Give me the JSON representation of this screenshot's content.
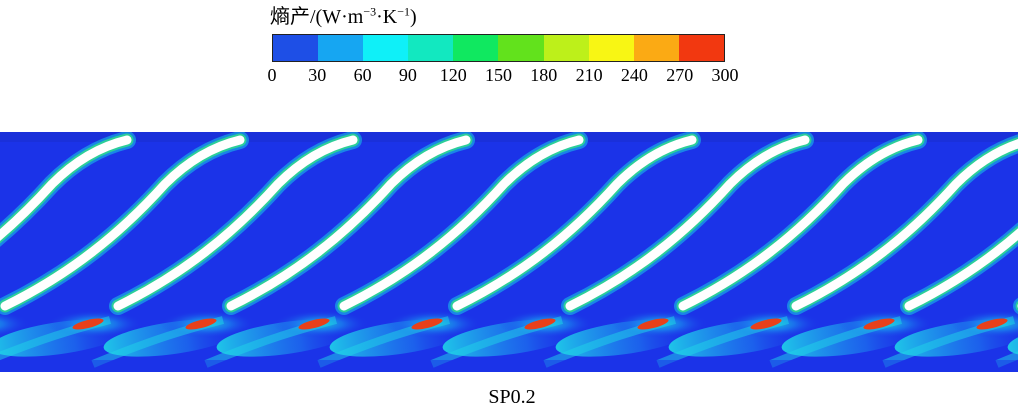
{
  "legend": {
    "title_main": "熵产/(W·m",
    "title_sup1": "−3",
    "title_mid": "·K",
    "title_sup2": "−1",
    "title_end": ")",
    "ticks": [
      "0",
      "30",
      "60",
      "90",
      "120",
      "150",
      "180",
      "210",
      "240",
      "270",
      "300"
    ],
    "colors": [
      "#1e4fe6",
      "#16a6f2",
      "#0ff0f8",
      "#12e8c0",
      "#10e860",
      "#62e21c",
      "#bdf01a",
      "#f8f614",
      "#fbaa14",
      "#f23810"
    ]
  },
  "caption": "SP0.2",
  "field": {
    "background_color": "#1b33e8",
    "blade_color": "#ffffff",
    "hot_spot_color": "#e8401a",
    "blade_count": 9
  }
}
